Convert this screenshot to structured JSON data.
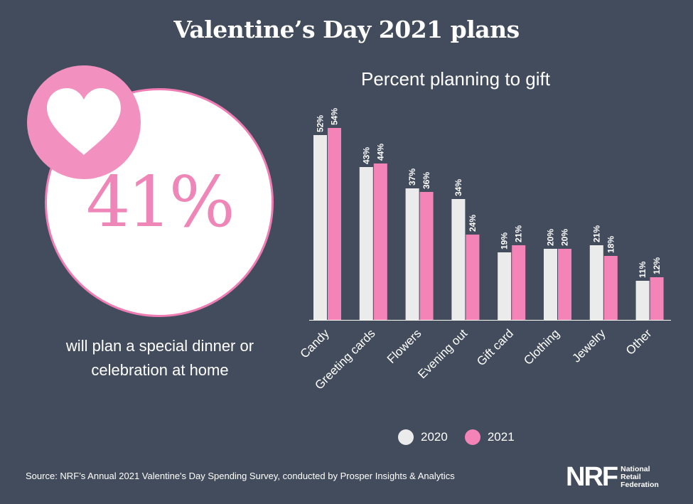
{
  "header": {
    "title": "Valentine’s Day 2021 plans"
  },
  "stat": {
    "value": "41%",
    "caption_line1": "will plan a special dinner or",
    "caption_line2": "celebration at home"
  },
  "colors": {
    "background": "#434c5c",
    "series_2020": "#ebebeb",
    "series_2021": "#f483b8",
    "accent_pink": "#f291bf"
  },
  "icons": {
    "badge": "heart-icon"
  },
  "legend": {
    "items": [
      {
        "label": "2020"
      },
      {
        "label": "2021"
      }
    ]
  },
  "footer": {
    "source": "Source: NRF’s Annual 2021 Valentine's Day Spending Survey, conducted by Prosper Insights & Analytics",
    "logo_mark": "NRF",
    "logo_line1": "National",
    "logo_line2": "Retail",
    "logo_line3": "Federation"
  },
  "chart_data": {
    "type": "bar",
    "title": "Percent planning to gift",
    "categories": [
      "Candy",
      "Greeting cards",
      "Flowers",
      "Evening out",
      "Gift card",
      "Clothing",
      "Jewelry",
      "Other"
    ],
    "series": [
      {
        "name": "2020",
        "values": [
          52,
          43,
          37,
          34,
          19,
          20,
          21,
          11
        ],
        "labels": [
          "52%",
          "43%",
          "37%",
          "34%",
          "19%",
          "20%",
          "21%",
          "11%"
        ]
      },
      {
        "name": "2021",
        "values": [
          54,
          44,
          36,
          24,
          21,
          20,
          18,
          12
        ],
        "labels": [
          "54%",
          "44%",
          "36%",
          "24%",
          "21%",
          "20%",
          "18%",
          "12%"
        ]
      }
    ],
    "ylim": [
      0,
      60
    ],
    "legend_position": "bottom",
    "grid": false
  }
}
